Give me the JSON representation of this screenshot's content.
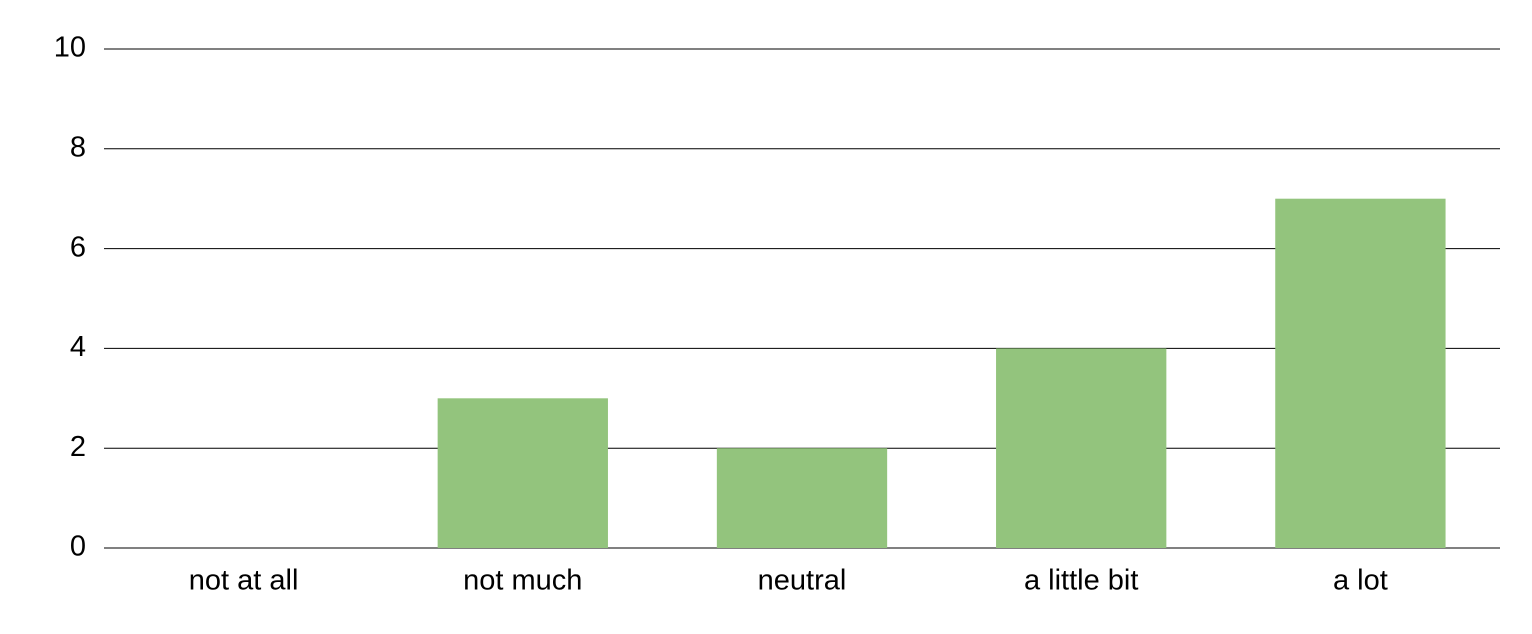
{
  "chart_data": {
    "type": "bar",
    "categories": [
      "not at all",
      "not much",
      "neutral",
      "a little bit",
      "a lot"
    ],
    "values": [
      0,
      3,
      2,
      4,
      7
    ],
    "color": "#93c47d",
    "ylim": [
      0,
      10
    ],
    "yticks": [
      0,
      2,
      4,
      6,
      8,
      10
    ],
    "grid": true
  }
}
